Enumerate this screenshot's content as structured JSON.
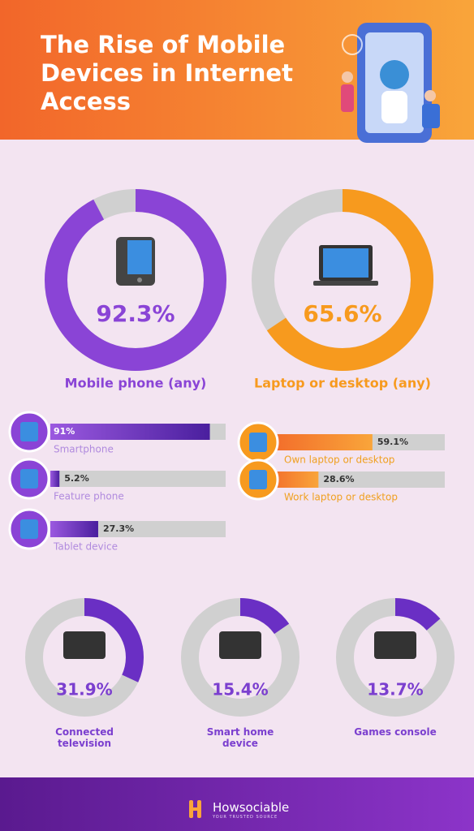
{
  "header": {
    "title": "The Rise of Mobile Devices in Internet Access"
  },
  "main_donuts": [
    {
      "label": "Mobile phone (any)",
      "value": 92.3,
      "value_label": "92.3%",
      "color": "#8a44d6"
    },
    {
      "label": "Laptop or desktop (any)",
      "value": 65.6,
      "value_label": "65.6%",
      "color": "#f79a1e"
    }
  ],
  "mobile_bars": [
    {
      "label": "Smartphone",
      "value": 91,
      "value_label": "91%"
    },
    {
      "label": "Feature phone",
      "value": 5.2,
      "value_label": "5.2%"
    },
    {
      "label": "Tablet device",
      "value": 27.3,
      "value_label": "27.3%"
    }
  ],
  "laptop_bars": [
    {
      "label": "Own laptop or desktop",
      "value": 59.1,
      "value_label": "59.1%"
    },
    {
      "label": "Work laptop or desktop",
      "value": 28.6,
      "value_label": "28.6%"
    }
  ],
  "small_donuts": [
    {
      "label": "Connected television",
      "value": 31.9,
      "value_label": "31.9%"
    },
    {
      "label": "Smart home device",
      "value": 15.4,
      "value_label": "15.4%"
    },
    {
      "label": "Games console",
      "value": 13.7,
      "value_label": "13.7%"
    }
  ],
  "footer": {
    "brand": "Howsociable",
    "tagline": "YOUR TRUSTED SOURCE"
  }
}
